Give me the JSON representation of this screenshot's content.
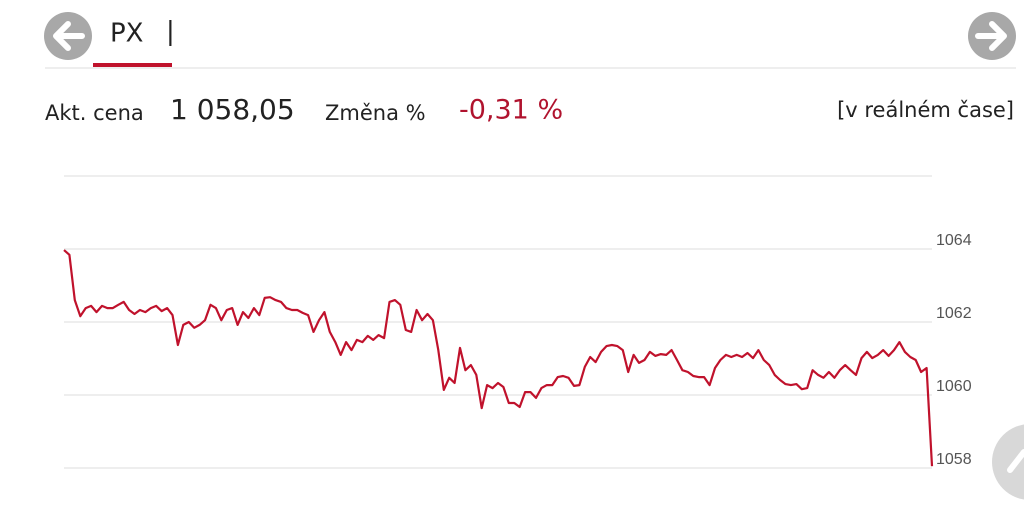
{
  "header": {
    "title": "PX",
    "cursor": "|"
  },
  "quote": {
    "price_label": "Akt. cena",
    "price": "1 058,05",
    "change_label": "Změna %",
    "change": "-0,31 %",
    "mode": "[v reálném čase]"
  },
  "chart_data": {
    "type": "line",
    "color": "#c0122c",
    "grid": true,
    "ylim": [
      1058,
      1066
    ],
    "yticks": [
      1058,
      1060,
      1062,
      1064
    ],
    "values": [
      1063.97,
      1063.84,
      1062.6,
      1062.16,
      1062.38,
      1062.44,
      1062.27,
      1062.44,
      1062.38,
      1062.38,
      1062.47,
      1062.55,
      1062.33,
      1062.22,
      1062.33,
      1062.27,
      1062.38,
      1062.44,
      1062.3,
      1062.38,
      1062.19,
      1061.37,
      1061.92,
      1062.0,
      1061.84,
      1061.92,
      1062.05,
      1062.47,
      1062.38,
      1062.05,
      1062.33,
      1062.38,
      1061.92,
      1062.27,
      1062.11,
      1062.38,
      1062.19,
      1062.66,
      1062.68,
      1062.6,
      1062.55,
      1062.38,
      1062.33,
      1062.33,
      1062.25,
      1062.19,
      1061.73,
      1062.05,
      1062.27,
      1061.73,
      1061.45,
      1061.1,
      1061.45,
      1061.23,
      1061.51,
      1061.45,
      1061.62,
      1061.51,
      1061.64,
      1061.56,
      1062.55,
      1062.6,
      1062.47,
      1061.78,
      1061.73,
      1062.33,
      1062.05,
      1062.22,
      1062.05,
      1061.23,
      1060.14,
      1060.47,
      1060.33,
      1061.29,
      1060.68,
      1060.82,
      1060.55,
      1059.64,
      1060.27,
      1060.19,
      1060.33,
      1060.22,
      1059.78,
      1059.78,
      1059.67,
      1060.08,
      1060.08,
      1059.92,
      1060.19,
      1060.27,
      1060.27,
      1060.49,
      1060.52,
      1060.47,
      1060.25,
      1060.27,
      1060.77,
      1061.04,
      1060.9,
      1061.18,
      1061.34,
      1061.37,
      1061.34,
      1061.23,
      1060.63,
      1061.1,
      1060.88,
      1060.96,
      1061.18,
      1061.07,
      1061.12,
      1061.1,
      1061.23,
      1060.96,
      1060.68,
      1060.63,
      1060.52,
      1060.49,
      1060.49,
      1060.27,
      1060.74,
      1060.96,
      1061.1,
      1061.04,
      1061.1,
      1061.04,
      1061.15,
      1061.01,
      1061.23,
      1060.96,
      1060.82,
      1060.55,
      1060.41,
      1060.3,
      1060.27,
      1060.3,
      1060.16,
      1060.19,
      1060.68,
      1060.55,
      1060.47,
      1060.63,
      1060.47,
      1060.68,
      1060.82,
      1060.68,
      1060.55,
      1061.01,
      1061.18,
      1061.01,
      1061.1,
      1061.23,
      1061.07,
      1061.23,
      1061.45,
      1061.18,
      1061.04,
      1060.96,
      1060.63,
      1060.74,
      1058.05
    ]
  }
}
